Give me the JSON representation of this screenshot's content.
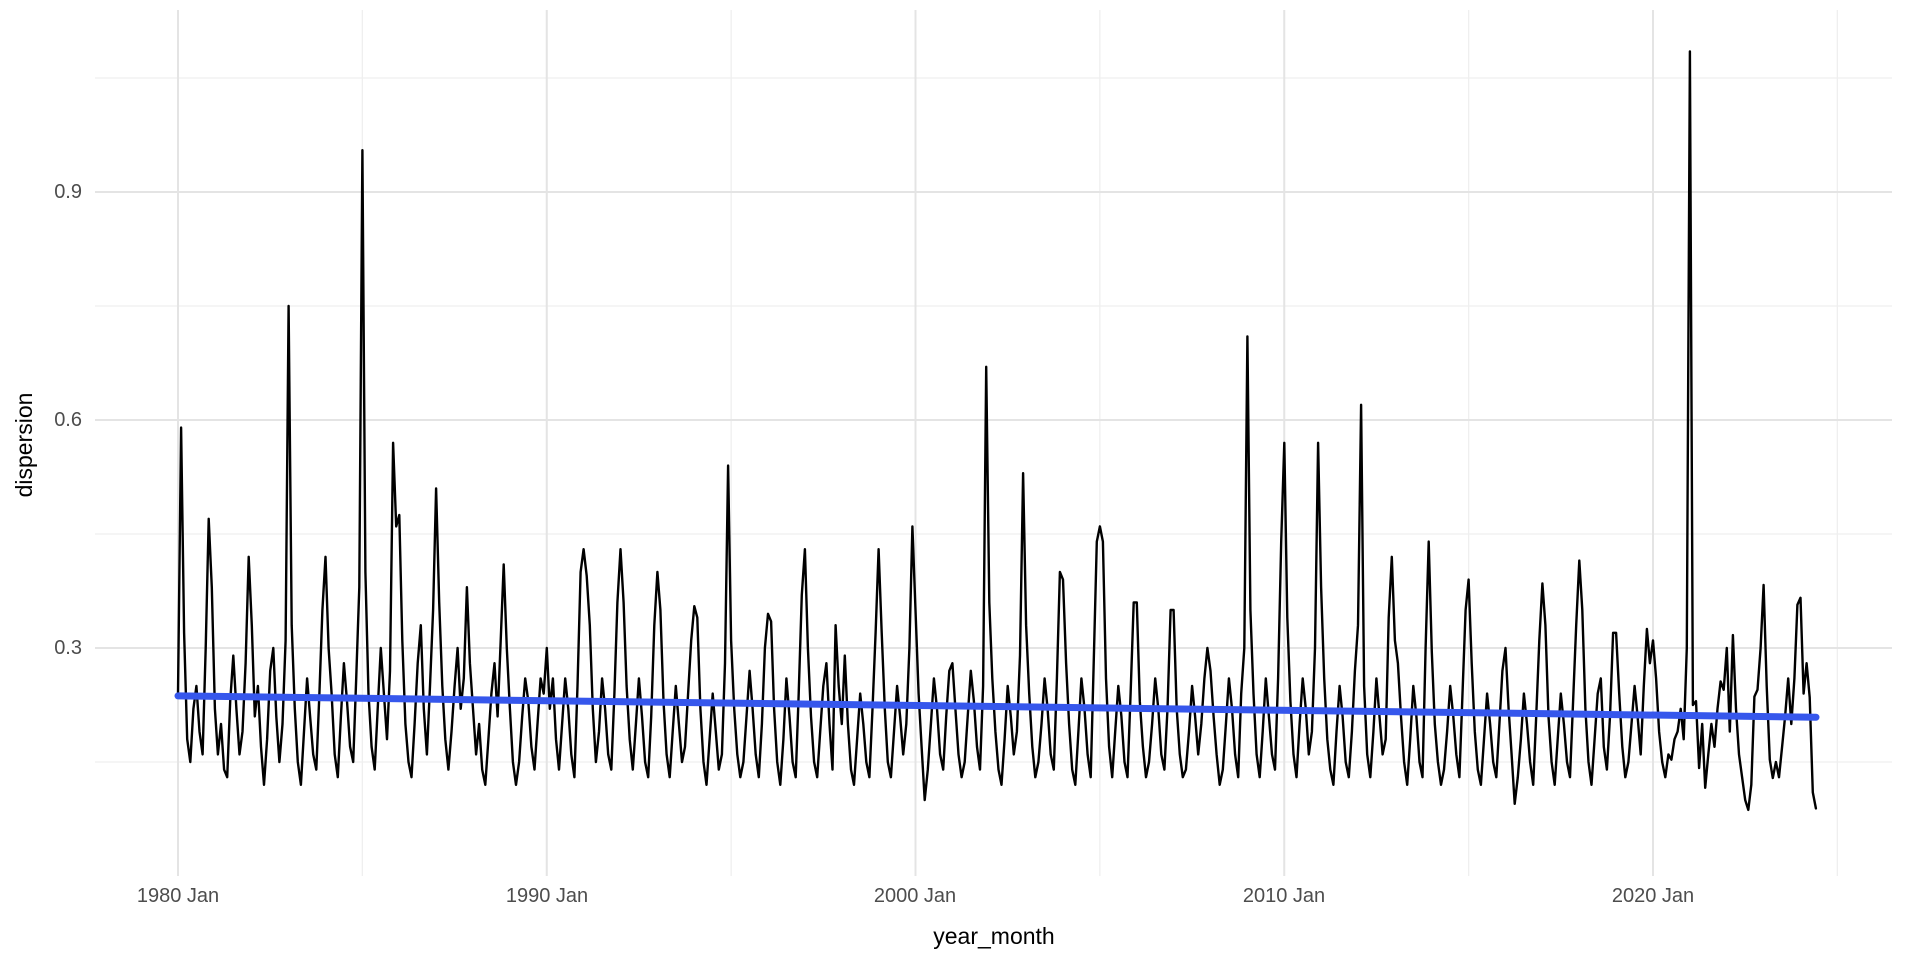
{
  "chart_data": {
    "type": "line",
    "title": "",
    "xlabel": "year_month",
    "ylabel": "dispersion",
    "legend": "none",
    "background": "#FFFFFF",
    "grid": "on",
    "colors": {
      "series_line": "#000000",
      "smooth_line": "#3657EC",
      "grid_major": "#E4E4E4",
      "grid_minor": "#EFEFEF",
      "tick_label": "#4D4D4D",
      "axis_title": "#000000"
    },
    "x_axis": {
      "ticks": [
        {
          "year": 1980,
          "label": "1980 Jan"
        },
        {
          "year": 1990,
          "label": "1990 Jan"
        },
        {
          "year": 2000,
          "label": "2000 Jan"
        },
        {
          "year": 2010,
          "label": "2010 Jan"
        },
        {
          "year": 2020,
          "label": "2020 Jan"
        }
      ],
      "minor_years": [
        1985,
        1995,
        2005,
        2015,
        2025
      ],
      "range_years": [
        1977.75,
        2026.5
      ]
    },
    "y_axis": {
      "ticks": [
        {
          "value": 0.3,
          "label": "0.3"
        },
        {
          "value": 0.6,
          "label": "0.6"
        },
        {
          "value": 0.9,
          "label": "0.9"
        }
      ],
      "minor_values": [
        0.15,
        0.45,
        0.75,
        1.05
      ],
      "range": [
        0.0,
        1.14
      ]
    },
    "series": [
      {
        "name": "dispersion",
        "kind": "monthly_line",
        "start_year": 1980,
        "start_month": 1,
        "frequency": "monthly",
        "values": [
          0.24,
          0.59,
          0.32,
          0.18,
          0.15,
          0.22,
          0.25,
          0.19,
          0.16,
          0.3,
          0.47,
          0.38,
          0.22,
          0.16,
          0.2,
          0.14,
          0.13,
          0.23,
          0.29,
          0.22,
          0.16,
          0.19,
          0.28,
          0.42,
          0.33,
          0.21,
          0.25,
          0.17,
          0.12,
          0.18,
          0.27,
          0.3,
          0.21,
          0.15,
          0.2,
          0.31,
          0.75,
          0.33,
          0.22,
          0.15,
          0.12,
          0.19,
          0.26,
          0.21,
          0.16,
          0.14,
          0.24,
          0.35,
          0.42,
          0.3,
          0.24,
          0.16,
          0.13,
          0.21,
          0.28,
          0.23,
          0.17,
          0.15,
          0.26,
          0.38,
          0.955,
          0.4,
          0.24,
          0.17,
          0.14,
          0.22,
          0.3,
          0.24,
          0.18,
          0.27,
          0.57,
          0.46,
          0.475,
          0.31,
          0.2,
          0.15,
          0.13,
          0.2,
          0.28,
          0.33,
          0.22,
          0.16,
          0.25,
          0.35,
          0.51,
          0.36,
          0.25,
          0.18,
          0.14,
          0.19,
          0.25,
          0.3,
          0.22,
          0.26,
          0.38,
          0.28,
          0.22,
          0.16,
          0.2,
          0.14,
          0.12,
          0.18,
          0.24,
          0.28,
          0.21,
          0.31,
          0.41,
          0.3,
          0.22,
          0.15,
          0.12,
          0.15,
          0.21,
          0.26,
          0.23,
          0.17,
          0.14,
          0.2,
          0.26,
          0.24,
          0.3,
          0.22,
          0.26,
          0.18,
          0.14,
          0.2,
          0.26,
          0.22,
          0.16,
          0.13,
          0.25,
          0.4,
          0.43,
          0.395,
          0.33,
          0.22,
          0.15,
          0.19,
          0.26,
          0.22,
          0.16,
          0.14,
          0.24,
          0.36,
          0.43,
          0.36,
          0.25,
          0.18,
          0.14,
          0.2,
          0.26,
          0.21,
          0.15,
          0.13,
          0.21,
          0.33,
          0.4,
          0.35,
          0.23,
          0.16,
          0.13,
          0.19,
          0.25,
          0.2,
          0.15,
          0.17,
          0.24,
          0.31,
          0.355,
          0.34,
          0.22,
          0.15,
          0.12,
          0.18,
          0.24,
          0.19,
          0.14,
          0.16,
          0.28,
          0.54,
          0.31,
          0.22,
          0.16,
          0.13,
          0.15,
          0.21,
          0.27,
          0.22,
          0.16,
          0.13,
          0.2,
          0.3,
          0.345,
          0.335,
          0.22,
          0.15,
          0.12,
          0.18,
          0.26,
          0.21,
          0.15,
          0.13,
          0.24,
          0.37,
          0.43,
          0.3,
          0.21,
          0.15,
          0.13,
          0.19,
          0.25,
          0.28,
          0.2,
          0.14,
          0.33,
          0.25,
          0.2,
          0.29,
          0.2,
          0.14,
          0.12,
          0.18,
          0.24,
          0.2,
          0.15,
          0.13,
          0.22,
          0.32,
          0.43,
          0.32,
          0.22,
          0.15,
          0.13,
          0.19,
          0.25,
          0.21,
          0.16,
          0.2,
          0.3,
          0.46,
          0.35,
          0.24,
          0.17,
          0.1,
          0.14,
          0.2,
          0.26,
          0.22,
          0.16,
          0.14,
          0.21,
          0.27,
          0.28,
          0.22,
          0.16,
          0.13,
          0.15,
          0.21,
          0.27,
          0.23,
          0.17,
          0.14,
          0.25,
          0.67,
          0.36,
          0.26,
          0.19,
          0.14,
          0.12,
          0.18,
          0.25,
          0.21,
          0.16,
          0.19,
          0.29,
          0.53,
          0.33,
          0.24,
          0.17,
          0.13,
          0.15,
          0.2,
          0.26,
          0.22,
          0.16,
          0.14,
          0.26,
          0.4,
          0.39,
          0.28,
          0.2,
          0.14,
          0.12,
          0.19,
          0.26,
          0.22,
          0.16,
          0.13,
          0.28,
          0.44,
          0.46,
          0.44,
          0.26,
          0.17,
          0.13,
          0.19,
          0.25,
          0.21,
          0.15,
          0.13,
          0.24,
          0.36,
          0.36,
          0.23,
          0.17,
          0.13,
          0.15,
          0.2,
          0.26,
          0.22,
          0.16,
          0.14,
          0.22,
          0.35,
          0.35,
          0.22,
          0.16,
          0.13,
          0.14,
          0.19,
          0.25,
          0.21,
          0.16,
          0.2,
          0.26,
          0.3,
          0.27,
          0.21,
          0.16,
          0.12,
          0.14,
          0.2,
          0.26,
          0.22,
          0.16,
          0.13,
          0.24,
          0.3,
          0.71,
          0.35,
          0.24,
          0.16,
          0.13,
          0.19,
          0.26,
          0.21,
          0.16,
          0.14,
          0.26,
          0.44,
          0.57,
          0.34,
          0.23,
          0.16,
          0.13,
          0.2,
          0.26,
          0.22,
          0.16,
          0.19,
          0.3,
          0.57,
          0.38,
          0.26,
          0.18,
          0.14,
          0.12,
          0.19,
          0.25,
          0.21,
          0.15,
          0.13,
          0.19,
          0.27,
          0.33,
          0.62,
          0.25,
          0.16,
          0.13,
          0.19,
          0.26,
          0.21,
          0.16,
          0.18,
          0.34,
          0.42,
          0.31,
          0.28,
          0.21,
          0.15,
          0.12,
          0.18,
          0.25,
          0.21,
          0.15,
          0.13,
          0.3,
          0.44,
          0.295,
          0.2,
          0.15,
          0.12,
          0.14,
          0.19,
          0.25,
          0.21,
          0.16,
          0.13,
          0.24,
          0.35,
          0.39,
          0.28,
          0.19,
          0.14,
          0.12,
          0.18,
          0.24,
          0.2,
          0.15,
          0.13,
          0.2,
          0.27,
          0.3,
          0.22,
          0.16,
          0.095,
          0.13,
          0.18,
          0.24,
          0.2,
          0.15,
          0.12,
          0.21,
          0.31,
          0.385,
          0.33,
          0.21,
          0.15,
          0.12,
          0.18,
          0.24,
          0.2,
          0.15,
          0.13,
          0.23,
          0.33,
          0.415,
          0.35,
          0.22,
          0.15,
          0.12,
          0.18,
          0.24,
          0.26,
          0.17,
          0.14,
          0.21,
          0.32,
          0.32,
          0.24,
          0.17,
          0.13,
          0.15,
          0.2,
          0.25,
          0.21,
          0.16,
          0.25,
          0.325,
          0.28,
          0.31,
          0.26,
          0.19,
          0.15,
          0.13,
          0.16,
          0.153,
          0.18,
          0.19,
          0.22,
          0.18,
          0.3,
          1.085,
          0.225,
          0.23,
          0.142,
          0.2,
          0.116,
          0.16,
          0.2,
          0.17,
          0.22,
          0.256,
          0.245,
          0.3,
          0.19,
          0.317,
          0.22,
          0.16,
          0.13,
          0.1,
          0.087,
          0.12,
          0.236,
          0.245,
          0.3,
          0.383,
          0.25,
          0.153,
          0.129,
          0.15,
          0.13,
          0.17,
          0.21,
          0.26,
          0.2,
          0.26,
          0.357,
          0.366,
          0.24,
          0.28,
          0.235,
          0.11,
          0.089
        ]
      },
      {
        "name": "trend",
        "kind": "smooth_line",
        "points": [
          {
            "year": 1980.0,
            "value": 0.237
          },
          {
            "year": 2024.42,
            "value": 0.209
          }
        ]
      }
    ]
  }
}
